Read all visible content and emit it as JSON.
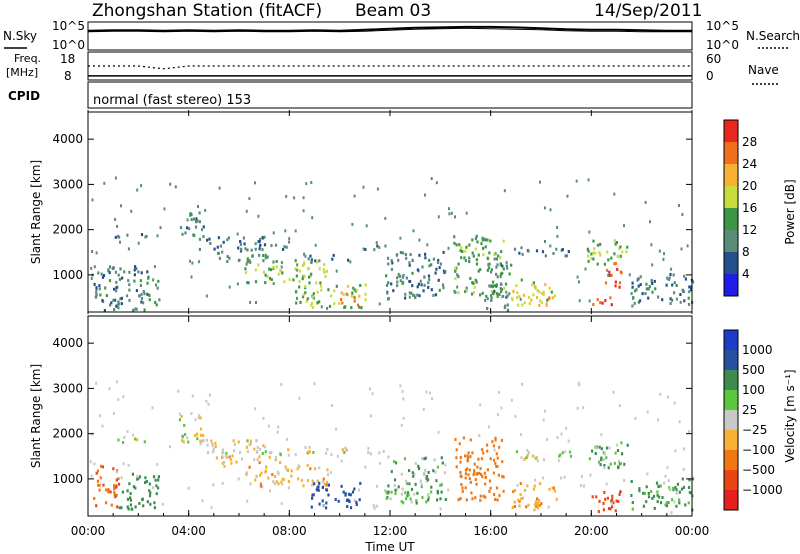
{
  "header": {
    "station": "Zhongshan Station (fitACF)",
    "beam": "Beam 03",
    "date": "14/Sep/2011",
    "mode": "normal (fast stereo) 153"
  },
  "strips": {
    "nsky": {
      "left_label": "N.Sky",
      "right_label": "N.Search",
      "ticks_left": [
        "10^5",
        "10^0"
      ],
      "ticks_right": [
        "10^5",
        "10^0"
      ],
      "ylim_log": [
        0,
        5
      ],
      "x": [
        0,
        1,
        2,
        3,
        4,
        5,
        6,
        7,
        8,
        9,
        10,
        11,
        12,
        13,
        14,
        15,
        16,
        17,
        18,
        19,
        20,
        21,
        22,
        23,
        24
      ],
      "nsky_values": [
        3.6,
        3.7,
        3.7,
        3.6,
        3.7,
        3.6,
        3.7,
        3.6,
        3.6,
        3.7,
        3.6,
        3.8,
        4.0,
        4.2,
        4.3,
        4.4,
        4.4,
        4.3,
        4.1,
        3.9,
        3.8,
        3.8,
        3.7,
        3.6,
        3.6
      ],
      "nsearch_values": [
        3.4,
        3.5,
        3.5,
        3.4,
        3.5,
        3.4,
        3.5,
        3.4,
        3.4,
        3.5,
        3.4,
        3.5,
        3.7,
        3.9,
        4.0,
        4.1,
        4.0,
        3.9,
        3.8,
        3.6,
        3.5,
        3.5,
        3.4,
        3.4,
        3.4
      ]
    },
    "freq": {
      "left_label_1": "Freq.",
      "left_label_2": "[MHz]",
      "right_label": "Nave",
      "ticks_left": [
        "18",
        "8"
      ],
      "ticks_right": [
        "60",
        "0"
      ],
      "freq_values": [
        8.4,
        8.4,
        8.4,
        8.4,
        8.4,
        8.4,
        8.4,
        8.4,
        8.4,
        8.4,
        8.4,
        8.4,
        8.4,
        8.4,
        8.4,
        8.4,
        8.4,
        8.4,
        8.4,
        8.4,
        8.4,
        8.4,
        8.4,
        8.4,
        8.4
      ],
      "nave_values": [
        30,
        30,
        30,
        24,
        30,
        30,
        30,
        30,
        30,
        30,
        30,
        30,
        30,
        30,
        30,
        30,
        30,
        30,
        30,
        30,
        30,
        30,
        30,
        30,
        30
      ]
    },
    "cpid_label": "CPID"
  },
  "chart_data": [
    {
      "type": "heatmap",
      "panel": "power",
      "ylabel": "Slant Range [km]",
      "xlabel": "",
      "ylim": [
        180,
        4600
      ],
      "yticks": [
        1000,
        2000,
        3000,
        4000
      ],
      "colorbar_label": "Power [dB]",
      "colorbar_ticks": [
        "28",
        "24",
        "20",
        "16",
        "12",
        "8",
        "4"
      ],
      "colorbar_colors": [
        "#e8281e",
        "#f06e1c",
        "#f7b233",
        "#c8dc3c",
        "#3c9646",
        "#5a8c78",
        "#24508c",
        "#1e1ee6"
      ],
      "regions": [
        {
          "t": [
            0.2,
            2.8
          ],
          "r": [
            200,
            1200
          ],
          "v": 8
        },
        {
          "t": [
            1.0,
            2.3
          ],
          "r": [
            1780,
            1920
          ],
          "v": 7
        },
        {
          "t": [
            3.6,
            4.6
          ],
          "r": [
            1800,
            2400
          ],
          "v": 9
        },
        {
          "t": [
            4.4,
            7.0
          ],
          "r": [
            1500,
            1850
          ],
          "v": 7
        },
        {
          "t": [
            5.0,
            7.6
          ],
          "r": [
            1250,
            1500
          ],
          "v": 10
        },
        {
          "t": [
            6.5,
            8.4
          ],
          "r": [
            1540,
            1660
          ],
          "v": 7
        },
        {
          "t": [
            8.4,
            10.3
          ],
          "r": [
            1300,
            1430
          ],
          "v": 7
        },
        {
          "t": [
            6.2,
            9.5
          ],
          "r": [
            800,
            1300
          ],
          "v": 14
        },
        {
          "t": [
            8.2,
            11.0
          ],
          "r": [
            250,
            800
          ],
          "v": 14
        },
        {
          "t": [
            10.0,
            10.8
          ],
          "r": [
            300,
            600
          ],
          "v": 24
        },
        {
          "t": [
            10.8,
            11.8
          ],
          "r": [
            1540,
            1660
          ],
          "v": 7
        },
        {
          "t": [
            11.8,
            14.2
          ],
          "r": [
            450,
            1500
          ],
          "v": 8
        },
        {
          "t": [
            14.5,
            16.5
          ],
          "r": [
            500,
            1900
          ],
          "v": 12
        },
        {
          "t": [
            15.8,
            16.8
          ],
          "r": [
            200,
            1250
          ],
          "v": 9
        },
        {
          "t": [
            16.8,
            19.2
          ],
          "r": [
            1400,
            1600
          ],
          "v": 7
        },
        {
          "t": [
            16.8,
            18.6
          ],
          "r": [
            300,
            900
          ],
          "v": 16
        },
        {
          "t": [
            17.5,
            18.3
          ],
          "r": [
            300,
            500
          ],
          "v": 22
        },
        {
          "t": [
            19.8,
            21.4
          ],
          "r": [
            1200,
            1800
          ],
          "v": 13
        },
        {
          "t": [
            20.0,
            20.8
          ],
          "r": [
            250,
            500
          ],
          "v": 26
        },
        {
          "t": [
            20.5,
            21.2
          ],
          "r": [
            700,
            1300
          ],
          "v": 25
        },
        {
          "t": [
            21.5,
            24.0
          ],
          "r": [
            300,
            1000
          ],
          "v": 8
        }
      ]
    },
    {
      "type": "heatmap",
      "panel": "velocity",
      "ylabel": "Slant Range [km]",
      "xlabel": "Time UT",
      "ylim": [
        180,
        4600
      ],
      "yticks": [
        1000,
        2000,
        3000,
        4000
      ],
      "xlim": [
        0,
        24
      ],
      "xticks": [
        "00:00",
        "04:00",
        "08:00",
        "12:00",
        "16:00",
        "20:00",
        "00:00"
      ],
      "colorbar_label": "Velocity [m s⁻¹]",
      "colorbar_ticks": [
        "1000",
        "500",
        "100",
        "25",
        "−25",
        "−100",
        "−500",
        "−1000"
      ],
      "colorbar_colors": [
        "#1e3cc8",
        "#2850a0",
        "#3c8c50",
        "#5ac83c",
        "#c8c8c8",
        "#f7b233",
        "#f07814",
        "#e84614",
        "#e61e1e"
      ],
      "regions": [
        {
          "t": [
            0.2,
            1.2
          ],
          "r": [
            300,
            1300
          ],
          "v": -300
        },
        {
          "t": [
            1.2,
            2.8
          ],
          "r": [
            300,
            1100
          ],
          "v": 150
        },
        {
          "t": [
            1.0,
            2.3
          ],
          "r": [
            1780,
            1920
          ],
          "v": 0
        },
        {
          "t": [
            3.6,
            4.6
          ],
          "r": [
            1800,
            2400
          ],
          "v": 0
        },
        {
          "t": [
            4.4,
            7.0
          ],
          "r": [
            1500,
            1850
          ],
          "v": 0
        },
        {
          "t": [
            5.0,
            7.6
          ],
          "r": [
            1250,
            1500
          ],
          "v": -60
        },
        {
          "t": [
            6.5,
            10.3
          ],
          "r": [
            1500,
            1700
          ],
          "v": 0
        },
        {
          "t": [
            6.2,
            9.5
          ],
          "r": [
            800,
            1300
          ],
          "v": -60
        },
        {
          "t": [
            8.8,
            10.8
          ],
          "r": [
            300,
            900
          ],
          "v": 700
        },
        {
          "t": [
            10.8,
            11.8
          ],
          "r": [
            1540,
            1660
          ],
          "v": 0
        },
        {
          "t": [
            11.8,
            14.2
          ],
          "r": [
            450,
            1500
          ],
          "v": 60
        },
        {
          "t": [
            14.5,
            16.5
          ],
          "r": [
            500,
            1900
          ],
          "v": -200
        },
        {
          "t": [
            16.8,
            19.2
          ],
          "r": [
            1400,
            1600
          ],
          "v": 0
        },
        {
          "t": [
            16.8,
            18.6
          ],
          "r": [
            300,
            900
          ],
          "v": -80
        },
        {
          "t": [
            19.8,
            21.4
          ],
          "r": [
            1200,
            1800
          ],
          "v": 60
        },
        {
          "t": [
            20.0,
            21.2
          ],
          "r": [
            250,
            800
          ],
          "v": -700
        },
        {
          "t": [
            21.5,
            24.0
          ],
          "r": [
            300,
            1000
          ],
          "v": 80
        }
      ]
    }
  ]
}
